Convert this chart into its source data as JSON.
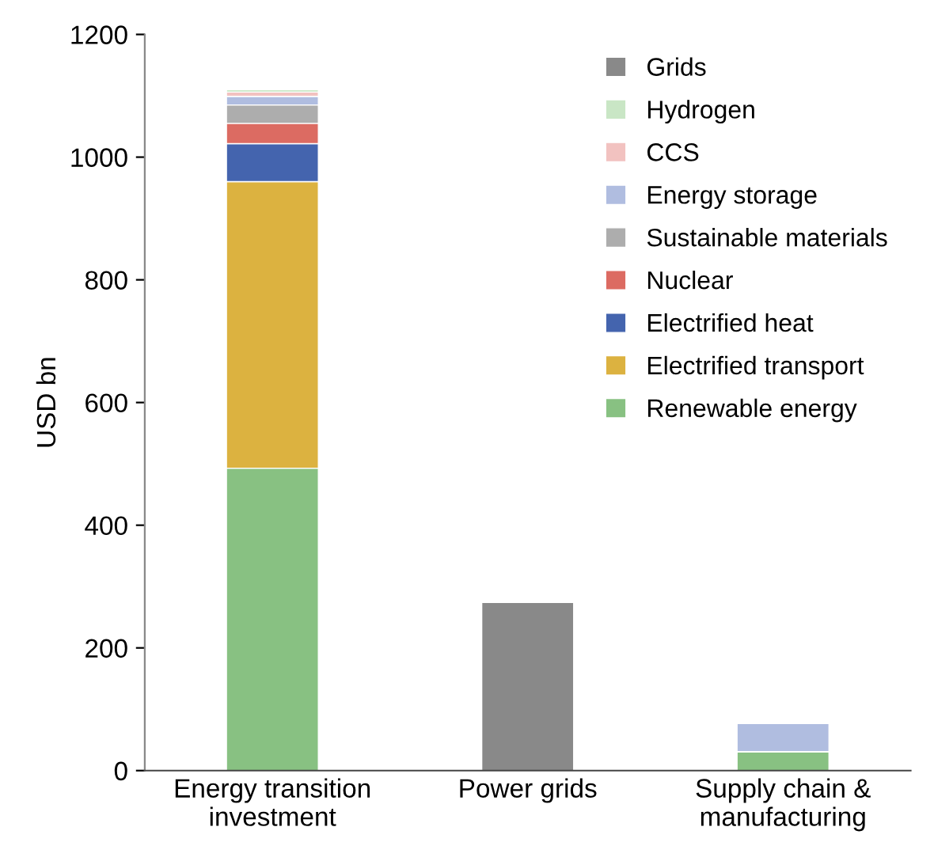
{
  "chart_data": {
    "type": "bar",
    "stacked": true,
    "ylabel": "USD bn",
    "categories": [
      "Energy transition\ninvestment",
      "Power grids",
      "Supply chain &\nmanufacturing"
    ],
    "series": [
      {
        "name": "Renewable energy",
        "color": "#88c182",
        "values": [
          493,
          null,
          31
        ]
      },
      {
        "name": "Electrified transport",
        "color": "#dcb240",
        "values": [
          467,
          null,
          null
        ]
      },
      {
        "name": "Electrified heat",
        "color": "#4464ae",
        "values": [
          62,
          null,
          null
        ]
      },
      {
        "name": "Nuclear",
        "color": "#dc6b62",
        "values": [
          33,
          null,
          null
        ]
      },
      {
        "name": "Sustainable materials",
        "color": "#adadad",
        "values": [
          30,
          null,
          null
        ]
      },
      {
        "name": "Energy storage",
        "color": "#b0bde0",
        "values": [
          14,
          null,
          46
        ]
      },
      {
        "name": "CCS",
        "color": "#f2c2c0",
        "values": [
          7,
          null,
          null
        ]
      },
      {
        "name": "Hydrogen",
        "color": "#c9e6c5",
        "values": [
          4,
          null,
          null
        ]
      },
      {
        "name": "Grids",
        "color": "#898989",
        "values": [
          null,
          274,
          null
        ]
      }
    ],
    "ylim": [
      0,
      1200
    ],
    "yticks": [
      0,
      200,
      400,
      600,
      800,
      1000,
      1200
    ],
    "grid": false,
    "legend": "top right"
  }
}
